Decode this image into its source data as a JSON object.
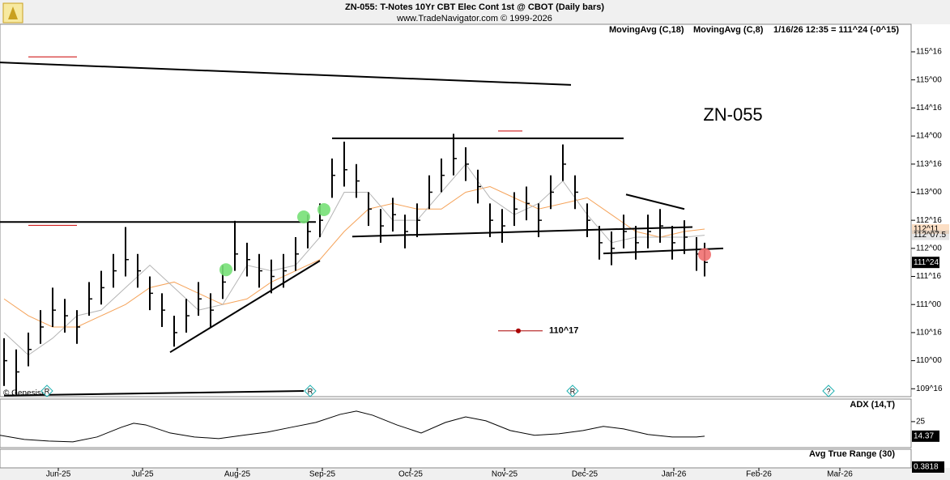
{
  "chart_data": [
    {
      "type": "ohlc",
      "title": "ZN-055:  T-Notes 10Yr CBT Elec Cont 1st @ CBOT  (Daily bars)",
      "subtitle": "www.TradeNavigator.com © 1999-2026",
      "symbol_label": "ZN-055",
      "status": "1/16/26 12:35 = 111^24 (-0^15)",
      "credit": "© GenesisFT",
      "color": "#000000",
      "x": [
        0,
        3,
        6,
        9,
        12,
        15,
        18,
        21,
        24,
        27,
        30,
        33,
        36,
        39,
        42,
        45,
        48,
        51,
        54,
        57,
        60,
        63,
        66,
        69,
        72,
        75,
        78,
        81,
        84,
        87,
        90,
        93,
        96,
        99,
        102,
        105,
        108,
        111,
        114,
        117,
        120,
        123,
        126,
        129,
        132,
        135,
        138,
        141,
        144,
        147,
        150,
        153,
        156,
        159,
        162,
        165,
        168,
        171,
        173
      ],
      "high": [
        110.4,
        110.2,
        110.5,
        110.9,
        111.3,
        111.1,
        110.9,
        111.4,
        111.6,
        111.9,
        112.38,
        111.9,
        111.5,
        111.2,
        110.8,
        111.1,
        111.4,
        111.2,
        111.7,
        112.49,
        112.1,
        111.9,
        111.8,
        111.9,
        112.2,
        112.6,
        112.8,
        113.6,
        113.9,
        113.5,
        113.0,
        112.7,
        112.9,
        112.6,
        112.8,
        113.3,
        113.6,
        114.04,
        113.8,
        113.4,
        112.8,
        112.7,
        113.0,
        113.1,
        112.8,
        113.3,
        113.85,
        113.3,
        112.8,
        112.4,
        112.3,
        112.6,
        112.4,
        112.6,
        112.7,
        112.4,
        112.5,
        112.2,
        112.1
      ],
      "low": [
        109.55,
        109.4,
        109.9,
        110.3,
        110.6,
        110.5,
        110.3,
        110.8,
        111.0,
        111.3,
        111.5,
        111.3,
        110.9,
        110.6,
        110.25,
        110.5,
        110.8,
        110.6,
        111.1,
        111.6,
        111.5,
        111.3,
        111.2,
        111.3,
        111.6,
        112.0,
        112.2,
        112.9,
        113.1,
        112.9,
        112.4,
        112.1,
        112.3,
        112.0,
        112.2,
        112.7,
        113.0,
        113.3,
        113.2,
        112.8,
        112.2,
        112.1,
        112.4,
        112.5,
        112.2,
        112.7,
        113.2,
        112.7,
        112.2,
        111.8,
        111.7,
        112.0,
        111.8,
        112.0,
        112.1,
        111.8,
        111.9,
        111.6,
        111.5
      ],
      "close": [
        110.0,
        109.8,
        110.2,
        110.6,
        110.9,
        110.8,
        110.6,
        111.1,
        111.3,
        111.6,
        111.8,
        111.6,
        111.2,
        110.9,
        110.5,
        110.8,
        111.1,
        110.9,
        111.4,
        111.9,
        111.8,
        111.6,
        111.5,
        111.6,
        111.9,
        112.3,
        112.5,
        113.3,
        113.4,
        113.2,
        112.7,
        112.4,
        112.6,
        112.3,
        112.5,
        113.0,
        113.3,
        113.6,
        113.5,
        113.1,
        112.5,
        112.4,
        112.7,
        112.8,
        112.5,
        113.0,
        113.5,
        113.0,
        112.5,
        112.1,
        112.0,
        112.3,
        112.1,
        112.3,
        112.4,
        112.1,
        112.2,
        111.9,
        111.75
      ],
      "last_price": {
        "value": 111.75,
        "label": "111^24"
      },
      "overlays": [
        {
          "name": "MovingAvg (C,18)",
          "color": "#f5a35a",
          "x": [
            0,
            6,
            12,
            18,
            24,
            30,
            36,
            42,
            48,
            54,
            60,
            66,
            72,
            78,
            84,
            90,
            96,
            102,
            108,
            114,
            120,
            126,
            132,
            138,
            144,
            150,
            156,
            162,
            168,
            173
          ],
          "values": [
            111.1,
            110.8,
            110.6,
            110.6,
            110.8,
            111.0,
            111.3,
            111.4,
            111.2,
            111.0,
            111.1,
            111.4,
            111.6,
            111.8,
            112.3,
            112.7,
            112.8,
            112.7,
            112.7,
            113.0,
            113.1,
            112.9,
            112.7,
            112.8,
            112.9,
            112.6,
            112.3,
            112.2,
            112.3,
            112.34375
          ],
          "last_value": {
            "value": 112.34375,
            "label": "112^11"
          }
        },
        {
          "name": "MovingAvg (C,8)",
          "color": "#b4b4b4",
          "x": [
            0,
            6,
            12,
            18,
            24,
            30,
            36,
            42,
            48,
            54,
            60,
            66,
            72,
            78,
            84,
            90,
            96,
            102,
            108,
            114,
            120,
            126,
            132,
            138,
            144,
            150,
            156,
            162,
            168,
            173
          ],
          "values": [
            110.5,
            110.1,
            110.4,
            110.8,
            110.9,
            111.3,
            111.7,
            111.3,
            110.9,
            111.0,
            111.7,
            111.6,
            111.7,
            112.2,
            113.0,
            113.0,
            112.5,
            112.5,
            113.0,
            113.5,
            112.9,
            112.6,
            112.8,
            113.2,
            112.6,
            112.1,
            112.2,
            112.2,
            112.2,
            112.234375
          ],
          "last_value": {
            "value": 112.234375,
            "label": "112^07.5"
          }
        }
      ],
      "trendlines": [
        {
          "color": "#000000",
          "x": [
            -1,
            140
          ],
          "y": [
            115.31,
            114.91
          ]
        },
        {
          "color": "#000000",
          "x": [
            81,
            153
          ],
          "y": [
            113.96,
            113.96
          ]
        },
        {
          "color": "#000000",
          "x": [
            -1,
            77
          ],
          "y": [
            112.47,
            112.47
          ]
        },
        {
          "color": "#000000",
          "x": [
            41,
            78
          ],
          "y": [
            110.15,
            111.78
          ]
        },
        {
          "color": "#000000",
          "x": [
            86,
            170
          ],
          "y": [
            112.21,
            112.38
          ]
        },
        {
          "color": "#000000",
          "x": [
            148,
            177.6
          ],
          "y": [
            111.91,
            112.0
          ]
        },
        {
          "color": "#000000",
          "x": [
            153.6,
            168
          ],
          "y": [
            112.96,
            112.7
          ]
        },
        {
          "color": "#000000",
          "x": [
            0,
            74
          ],
          "y": [
            109.38,
            109.46
          ]
        },
        {
          "color": "#cc0000",
          "x": [
            6,
            18
          ],
          "y": [
            115.41,
            115.41
          ]
        },
        {
          "color": "#cc0000",
          "x": [
            122,
            128
          ],
          "y": [
            114.09,
            114.09
          ]
        },
        {
          "color": "#cc0000",
          "x": [
            6,
            18
          ],
          "y": [
            112.41,
            112.41
          ]
        }
      ],
      "price_marker": {
        "x": [
          122,
          133
        ],
        "dot_x": 127,
        "color": "#aa0000",
        "value": 110.53125,
        "label": "110^17"
      },
      "signals": [
        {
          "x": 54.8,
          "y": 111.62,
          "color": "#77e077"
        },
        {
          "x": 74,
          "y": 112.56,
          "color": "#77e077"
        },
        {
          "x": 79,
          "y": 112.69,
          "color": "#77e077"
        },
        {
          "x": 173,
          "y": 111.89,
          "color": "#f07070"
        }
      ],
      "events": [
        {
          "x": 10.6,
          "label": "R"
        },
        {
          "x": 75.6,
          "label": "R"
        },
        {
          "x": 140.4,
          "label": "R"
        },
        {
          "x": 203.6,
          "label": "?"
        }
      ],
      "xlim": [
        -1,
        224
      ],
      "xticks": [
        {
          "value": 13.4,
          "label": "Jun-25"
        },
        {
          "value": 34.2,
          "label": "Jul-25"
        },
        {
          "value": 57.6,
          "label": "Aug-25"
        },
        {
          "value": 78.6,
          "label": "Sep-25"
        },
        {
          "value": 100.4,
          "label": "Oct-25"
        },
        {
          "value": 123.6,
          "label": "Nov-25"
        },
        {
          "value": 143.4,
          "label": "Dec-25"
        },
        {
          "value": 165.4,
          "label": "Jan-26"
        },
        {
          "value": 186.4,
          "label": "Feb-26"
        },
        {
          "value": 206.4,
          "label": "Mar-26"
        }
      ],
      "ylim": [
        109.36,
        115.99
      ],
      "yticks": [
        {
          "value": 109.5,
          "label": "109^16"
        },
        {
          "value": 110,
          "label": "110^00"
        },
        {
          "value": 110.5,
          "label": "110^16"
        },
        {
          "value": 111,
          "label": "111^00"
        },
        {
          "value": 111.5,
          "label": "111^16"
        },
        {
          "value": 112,
          "label": "112^00"
        },
        {
          "value": 112.5,
          "label": "112^16"
        },
        {
          "value": 113,
          "label": "113^00"
        },
        {
          "value": 113.5,
          "label": "113^16"
        },
        {
          "value": 114,
          "label": "114^00"
        },
        {
          "value": 114.5,
          "label": "114^16"
        },
        {
          "value": 115,
          "label": "115^00"
        },
        {
          "value": 115.5,
          "label": "115^16"
        }
      ]
    },
    {
      "type": "line",
      "title": "ADX (14,T)",
      "color": "#000000",
      "x": [
        -1,
        5,
        11,
        17,
        23,
        29,
        32,
        35,
        41,
        47,
        53,
        59,
        65,
        71,
        77,
        83,
        87,
        91,
        97,
        103,
        109,
        114,
        119,
        125,
        131,
        137,
        143,
        148,
        153,
        159,
        165,
        171,
        173
      ],
      "values": [
        15.0,
        12.0,
        10.8,
        10.2,
        13.8,
        20.9,
        23.8,
        22.6,
        16.7,
        13.8,
        12.6,
        15.0,
        17.3,
        20.9,
        24.4,
        30.3,
        32.7,
        29.7,
        22.6,
        16.7,
        24.4,
        28.5,
        25.6,
        18.5,
        15.0,
        16.1,
        18.5,
        21.5,
        19.7,
        15.6,
        13.8,
        13.8,
        14.37
      ],
      "last_value": 14.37,
      "ylim": [
        6,
        41.5
      ],
      "yticks": [
        25
      ]
    },
    {
      "type": "line",
      "title": "Avg True Range (30)",
      "last_value": 0.3818
    }
  ]
}
